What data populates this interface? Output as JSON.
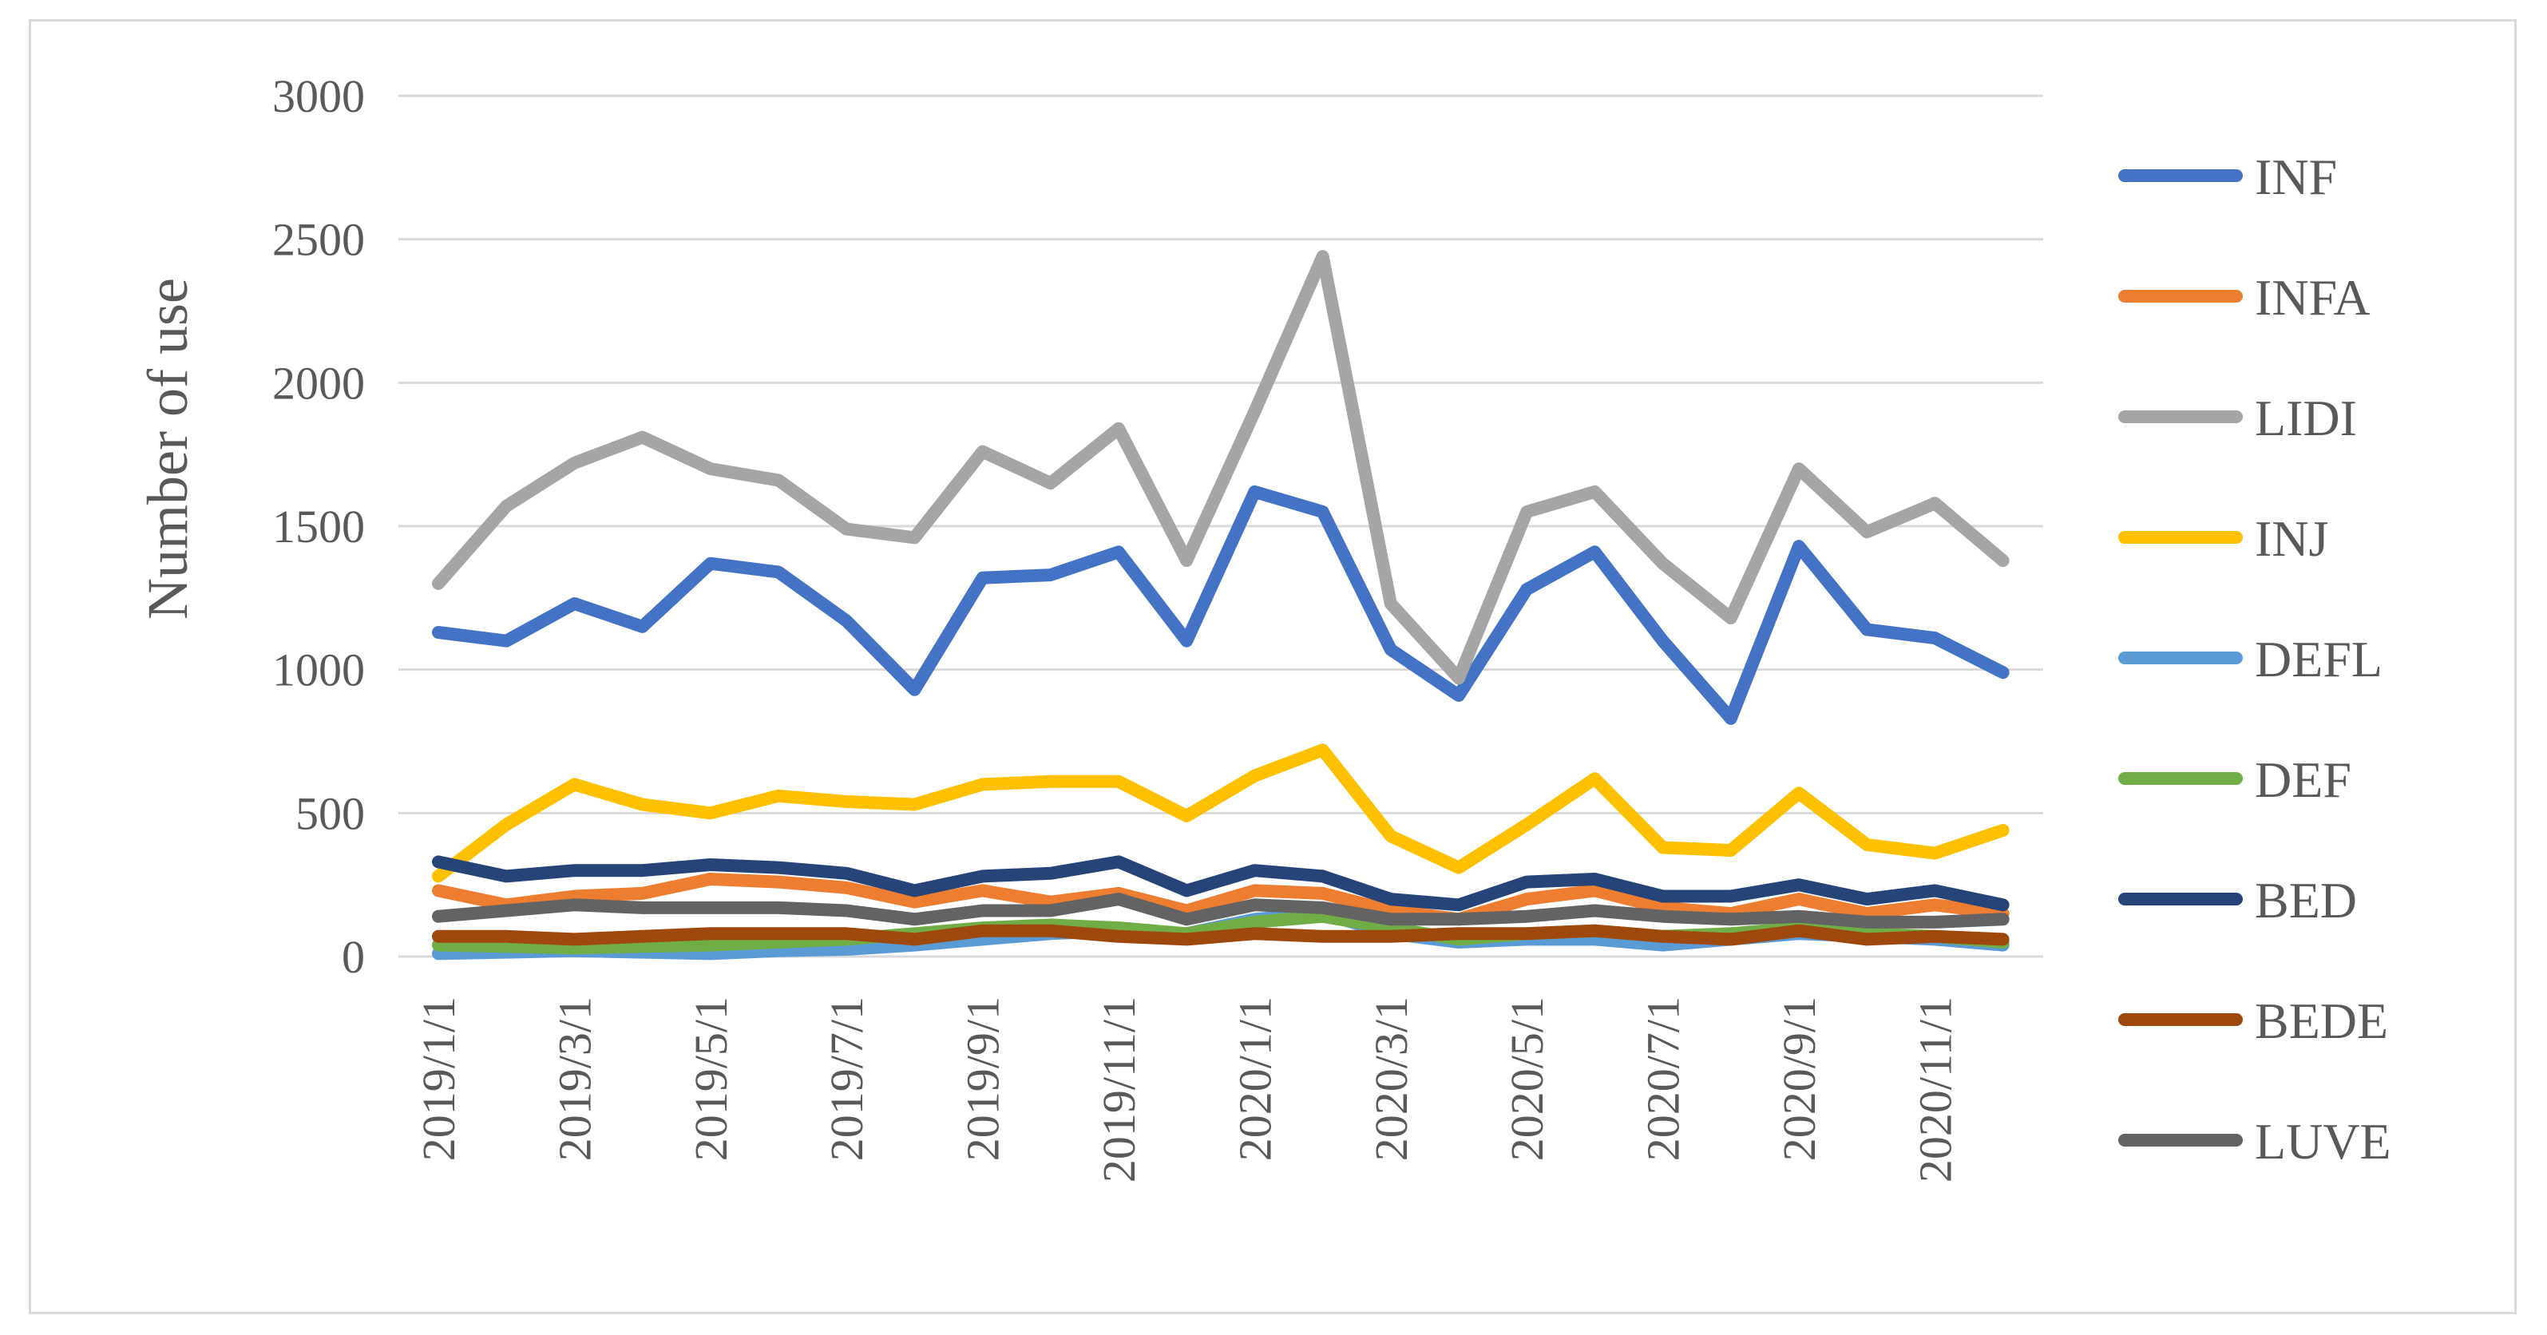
{
  "chart_data": {
    "type": "line",
    "title": "",
    "xlabel": "",
    "ylabel": "Number of use",
    "ylim": [
      0,
      3000
    ],
    "yticks": [
      0,
      500,
      1000,
      1500,
      2000,
      2500,
      3000
    ],
    "grid": true,
    "legend_position": "right",
    "x": [
      "2019/1/1",
      "2019/2/1",
      "2019/3/1",
      "2019/4/1",
      "2019/5/1",
      "2019/6/1",
      "2019/7/1",
      "2019/8/1",
      "2019/9/1",
      "2019/10/1",
      "2019/11/1",
      "2019/12/1",
      "2020/1/1",
      "2020/2/1",
      "2020/3/1",
      "2020/4/1",
      "2020/5/1",
      "2020/6/1",
      "2020/7/1",
      "2020/8/1",
      "2020/9/1",
      "2020/10/1",
      "2020/11/1",
      "2020/12/1"
    ],
    "x_tick_labels": [
      "2019/1/1",
      "",
      "2019/3/1",
      "",
      "2019/5/1",
      "",
      "2019/7/1",
      "",
      "2019/9/1",
      "",
      "2019/11/1",
      "",
      "2020/1/1",
      "",
      "2020/3/1",
      "",
      "2020/5/1",
      "",
      "2020/7/1",
      "",
      "2020/9/1",
      "",
      "2020/11/1",
      ""
    ],
    "series": [
      {
        "name": "INF",
        "color": "#4472C4",
        "values": [
          1130,
          1100,
          1230,
          1150,
          1370,
          1340,
          1170,
          930,
          1320,
          1330,
          1410,
          1100,
          1620,
          1550,
          1070,
          910,
          1280,
          1410,
          1100,
          830,
          1430,
          1140,
          1110,
          990
        ]
      },
      {
        "name": "INFA",
        "color": "#ED7D31",
        "values": [
          230,
          180,
          210,
          220,
          270,
          260,
          240,
          190,
          230,
          190,
          220,
          160,
          230,
          220,
          160,
          130,
          200,
          230,
          170,
          150,
          200,
          150,
          180,
          150
        ]
      },
      {
        "name": "LIDI",
        "color": "#A5A5A5",
        "values": [
          1300,
          1570,
          1720,
          1810,
          1700,
          1660,
          1490,
          1460,
          1760,
          1650,
          1840,
          1380,
          1900,
          2440,
          1230,
          970,
          1550,
          1620,
          1370,
          1180,
          1700,
          1480,
          1580,
          1380
        ]
      },
      {
        "name": "INJ",
        "color": "#FFC000",
        "values": [
          280,
          460,
          600,
          530,
          500,
          560,
          540,
          530,
          600,
          610,
          610,
          490,
          630,
          720,
          420,
          310,
          460,
          620,
          380,
          370,
          570,
          390,
          360,
          440
        ]
      },
      {
        "name": "DEFL",
        "color": "#5B9BD5",
        "values": [
          10,
          15,
          20,
          15,
          10,
          20,
          25,
          40,
          60,
          80,
          90,
          80,
          130,
          150,
          80,
          50,
          60,
          60,
          40,
          60,
          80,
          70,
          60,
          40
        ]
      },
      {
        "name": "DEF",
        "color": "#70AD47",
        "values": [
          40,
          35,
          30,
          35,
          40,
          50,
          60,
          80,
          100,
          110,
          100,
          80,
          120,
          140,
          100,
          60,
          80,
          90,
          70,
          80,
          100,
          80,
          70,
          50
        ]
      },
      {
        "name": "BED",
        "color": "#264478",
        "values": [
          330,
          280,
          300,
          300,
          320,
          310,
          290,
          230,
          280,
          290,
          330,
          230,
          300,
          280,
          200,
          180,
          260,
          270,
          210,
          210,
          250,
          200,
          230,
          180
        ]
      },
      {
        "name": "BEDE",
        "color": "#9E480E",
        "values": [
          70,
          70,
          60,
          70,
          80,
          80,
          80,
          60,
          90,
          90,
          70,
          60,
          80,
          70,
          70,
          80,
          80,
          90,
          70,
          60,
          90,
          60,
          70,
          60
        ]
      },
      {
        "name": "LUVE",
        "color": "#636363",
        "values": [
          140,
          160,
          180,
          170,
          170,
          170,
          160,
          130,
          160,
          160,
          200,
          130,
          180,
          170,
          130,
          130,
          140,
          160,
          140,
          130,
          140,
          120,
          120,
          130
        ]
      }
    ]
  }
}
